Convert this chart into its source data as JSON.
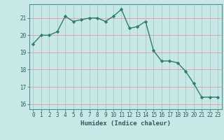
{
  "x": [
    0,
    1,
    2,
    3,
    4,
    5,
    6,
    7,
    8,
    9,
    10,
    11,
    12,
    13,
    14,
    15,
    16,
    17,
    18,
    19,
    20,
    21,
    22,
    23
  ],
  "y": [
    19.5,
    20.0,
    20.0,
    20.2,
    21.1,
    20.8,
    20.9,
    21.0,
    21.0,
    20.8,
    21.1,
    21.5,
    20.4,
    20.5,
    20.8,
    19.1,
    18.5,
    18.5,
    18.4,
    17.9,
    17.2,
    16.4,
    16.4,
    16.4
  ],
  "xlabel": "Humidex (Indice chaleur)",
  "line_color": "#2e7d6e",
  "marker": "D",
  "marker_size": 2.2,
  "bg_color": "#c8e8e8",
  "hgrid_color": "#e89898",
  "vgrid_color": "#a8c8c8",
  "ylim": [
    15.7,
    21.8
  ],
  "xlim": [
    -0.5,
    23.5
  ],
  "yticks": [
    16,
    17,
    18,
    19,
    20,
    21
  ],
  "xticks": [
    0,
    1,
    2,
    3,
    4,
    5,
    6,
    7,
    8,
    9,
    10,
    11,
    12,
    13,
    14,
    15,
    16,
    17,
    18,
    19,
    20,
    21,
    22,
    23
  ],
  "tick_fontsize": 5.5,
  "xlabel_fontsize": 6.5
}
